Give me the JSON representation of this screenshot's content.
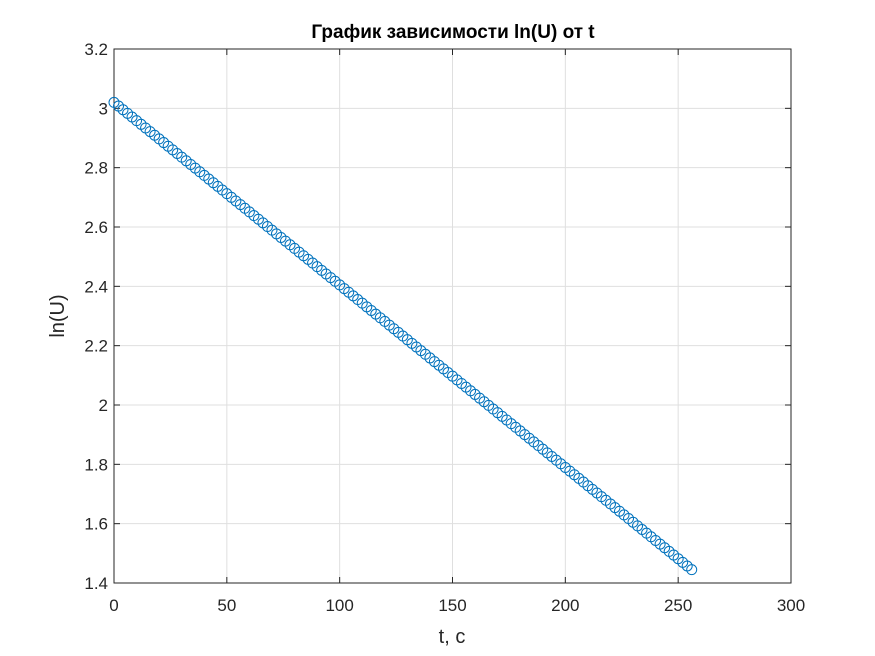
{
  "chart_data": {
    "type": "scatter",
    "title": "График зависимости ln(U) от t",
    "xlabel": "t, c",
    "ylabel": "ln(U)",
    "xlim": [
      0,
      300
    ],
    "ylim": [
      1.4,
      3.2
    ],
    "xticks": [
      "0",
      "50",
      "100",
      "150",
      "200",
      "250",
      "300"
    ],
    "yticks": [
      "1.4",
      "1.6",
      "1.8",
      "2",
      "2.2",
      "2.4",
      "2.6",
      "2.8",
      "3",
      "3.2"
    ],
    "grid": true,
    "marker": "circle",
    "marker_color": "#0072BD",
    "series": [
      {
        "x_start": 0,
        "x_end": 256,
        "x_step": 2,
        "y_at_start": 3.02,
        "y_at_end": 1.445
      }
    ]
  }
}
